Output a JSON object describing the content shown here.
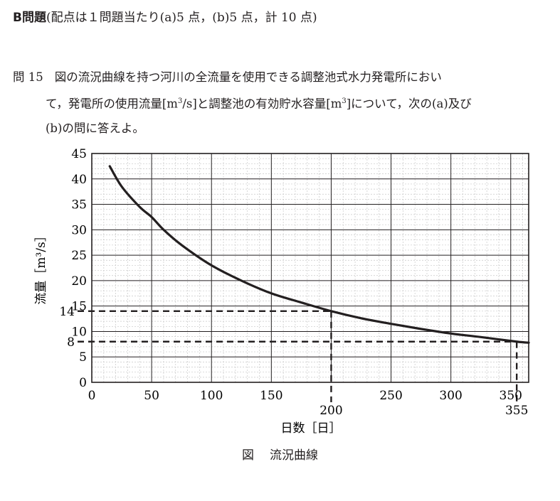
{
  "header": {
    "label": "B問題",
    "scoring": "(配点は１問題当たり(a)5 点，(b)5 点，計 10 点)"
  },
  "question": {
    "number": "問 15",
    "line1": "図の流況曲線を持つ河川の全流量を使用できる調整池式水力発電所におい",
    "line2a": "て，発電所の使用流量[m",
    "sup1": "3",
    "line2b": "/s]と調整池の有効貯水容量[m",
    "sup2": "3",
    "line2c": "]について，次の(a)及び",
    "line3": "(b)の問に答えよ。"
  },
  "caption": {
    "lead": "図",
    "text": "流況曲線"
  },
  "chart_data": {
    "type": "line",
    "xlabel": "日数［日］",
    "ylabel": "流量［m³/s］",
    "xlim": [
      0,
      365
    ],
    "ylim": [
      0,
      45
    ],
    "x_ticks": [
      "0",
      "50",
      "100",
      "150",
      "250",
      "300",
      "350"
    ],
    "y_ticks": [
      "0",
      "5",
      "10",
      "15",
      "20",
      "25",
      "30",
      "35",
      "40",
      "45"
    ],
    "grid": true,
    "series": [
      {
        "x": [
          15,
          25,
          40,
          50,
          60,
          75,
          100,
          125,
          150,
          175,
          200,
          225,
          250,
          275,
          300,
          325,
          355,
          365
        ],
        "y": [
          42.5,
          38.5,
          34.5,
          32.5,
          30.0,
          27.0,
          23.0,
          20.0,
          17.5,
          15.7,
          14.0,
          12.6,
          11.5,
          10.5,
          9.6,
          8.9,
          8.0,
          7.8
        ]
      }
    ],
    "annotations": [
      {
        "x_label": "200",
        "y_label": "14",
        "x": 200,
        "y": 14
      },
      {
        "x_label": "355",
        "y_label": "8",
        "x": 355,
        "y": 8
      }
    ]
  }
}
